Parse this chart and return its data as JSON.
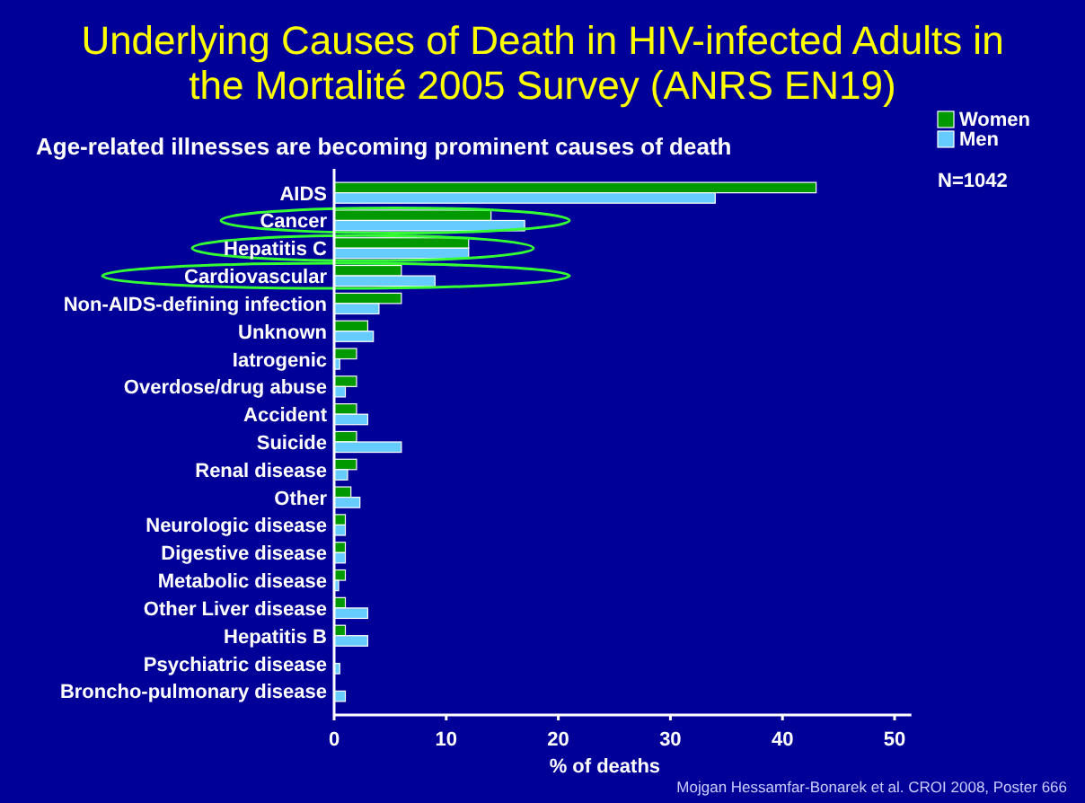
{
  "chart_data": {
    "type": "bar",
    "orientation": "horizontal",
    "title": "Underlying Causes of Death in HIV-infected Adults in the Mortalité 2005 Survey (ANRS EN19)",
    "subtitle": "Age-related illnesses are becoming prominent causes of death",
    "xlabel": "% of deaths",
    "categories": [
      "AIDS",
      "Cancer",
      "Hepatitis C",
      "Cardiovascular",
      "Non-AIDS-defining infection",
      "Unknown",
      "Iatrogenic",
      "Overdose/drug abuse",
      "Accident",
      "Suicide",
      "Renal disease",
      "Other",
      "Neurologic disease",
      "Digestive disease",
      "Metabolic disease",
      "Other Liver disease",
      "Hepatitis B",
      "Psychiatric disease",
      "Broncho-pulmonary disease"
    ],
    "series": [
      {
        "name": "Women",
        "color": "#009900",
        "values": [
          43,
          14,
          12,
          6,
          6,
          3,
          2,
          2,
          2,
          2,
          2,
          1.5,
          1,
          1,
          1,
          1,
          1,
          0,
          0
        ]
      },
      {
        "name": "Men",
        "color": "#66ccff",
        "values": [
          34,
          17,
          12,
          9,
          4,
          3.5,
          0.5,
          1,
          3,
          6,
          1.2,
          2.3,
          1,
          1,
          0.4,
          3,
          3,
          0.5,
          1
        ]
      }
    ],
    "xlim": [
      0,
      51.5
    ],
    "xticks": [
      0,
      10,
      20,
      30,
      40,
      50
    ],
    "legend": "top right",
    "grid": false,
    "annotations": [
      "N=1042",
      "Mojgan Hessamfar-Bonarek et al. CROI 2008, Poster 666"
    ]
  }
}
